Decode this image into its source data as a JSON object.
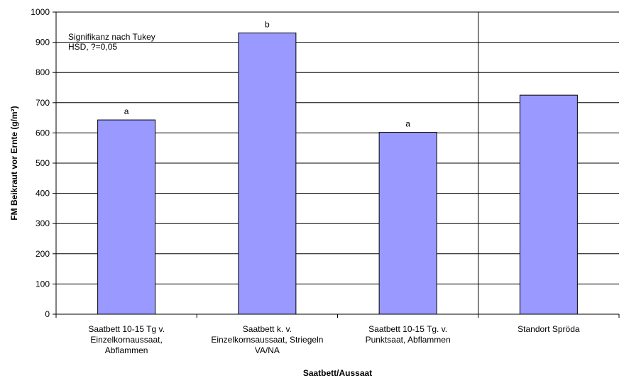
{
  "chart_data": {
    "type": "bar",
    "categories": [
      [
        "Saatbett 10-15 Tg v.",
        "Einzelkornaussaat,",
        "Abflammen"
      ],
      [
        "Saatbett k. v.",
        "Einzelkornsaussaat, Striegeln",
        "VA/NA"
      ],
      [
        "Saatbett 10-15 Tg. v.",
        "Punktsaat, Abflammen"
      ],
      [
        "Standort Spröda"
      ]
    ],
    "values": [
      643,
      931,
      602,
      725
    ],
    "significance_letters": [
      "a",
      "b",
      "a",
      ""
    ],
    "xlabel": "Saatbett/Aussaat",
    "ylabel": "FM Beikraut vor Ernte (g/m²)",
    "ylim": [
      0,
      1000
    ],
    "yticks": [
      0,
      100,
      200,
      300,
      400,
      500,
      600,
      700,
      800,
      900,
      1000
    ],
    "grid": true,
    "bar_color": "#9999ff",
    "separator_after_category": 3,
    "annotation": [
      "Signifikanz nach Tukey",
      "HSD, ?=0,05"
    ]
  }
}
